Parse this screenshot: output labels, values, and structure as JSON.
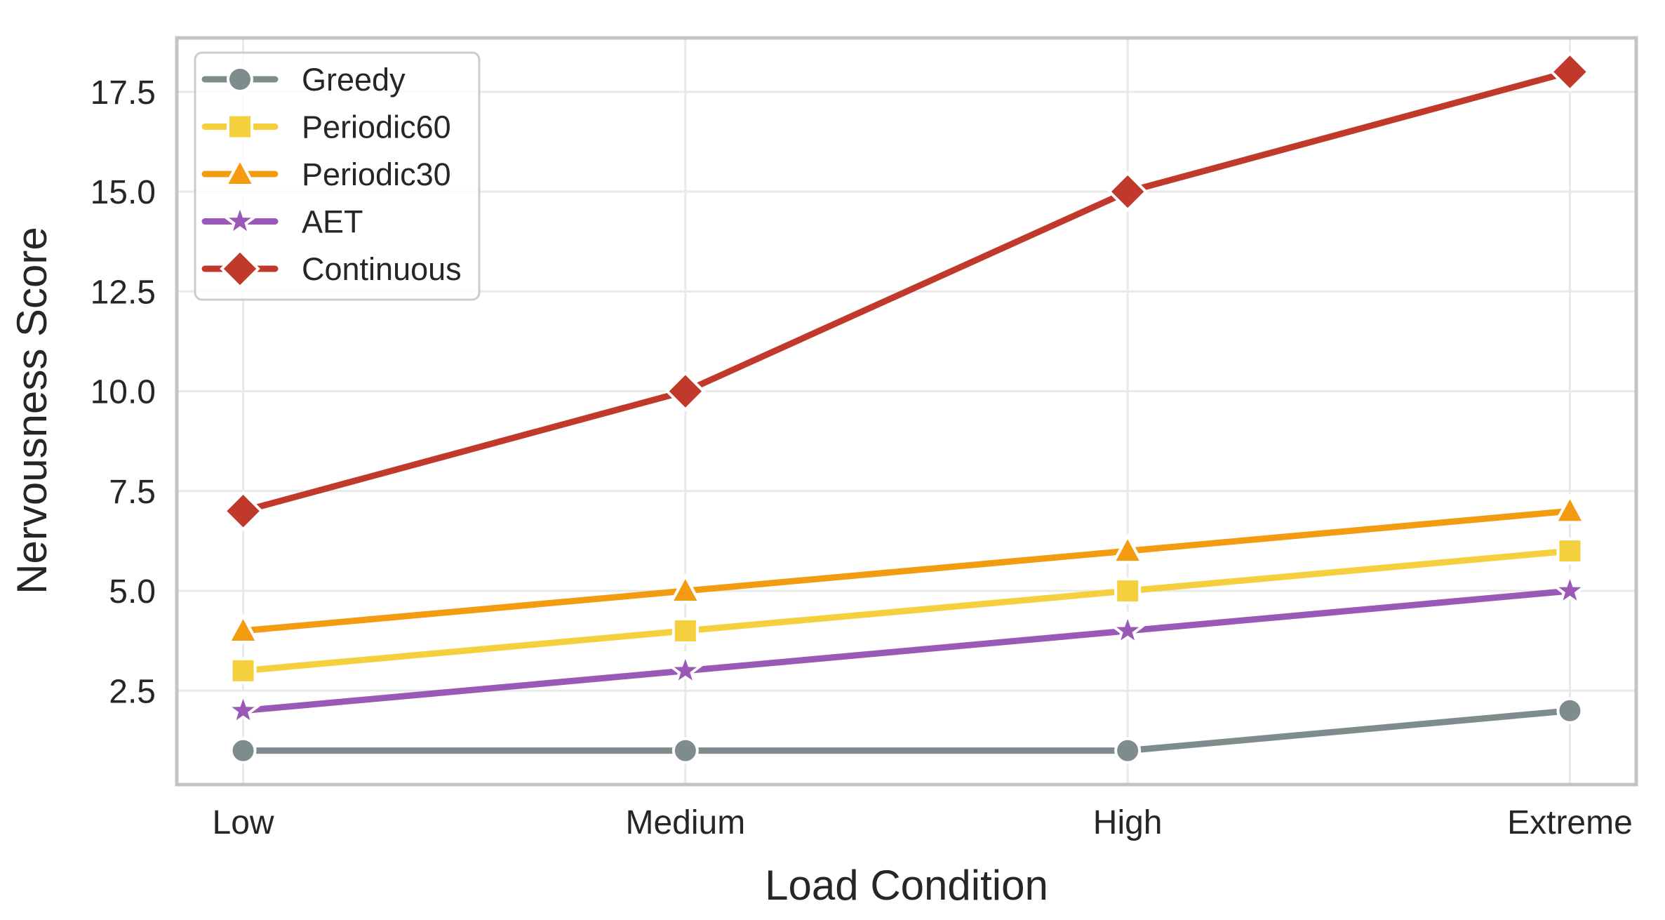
{
  "chart_data": {
    "type": "line",
    "title": "",
    "xlabel": "Load Condition",
    "ylabel": "Nervousness Score",
    "categories": [
      "Low",
      "Medium",
      "High",
      "Extreme"
    ],
    "series": [
      {
        "name": "Greedy",
        "color": "#7f8c8d",
        "marker": "circle",
        "values": [
          1,
          1,
          1,
          2
        ]
      },
      {
        "name": "Periodic60",
        "color": "#f4d03f",
        "marker": "square",
        "values": [
          3,
          4,
          5,
          6
        ]
      },
      {
        "name": "Periodic30",
        "color": "#f39c12",
        "marker": "triangle-up",
        "values": [
          4,
          5,
          6,
          7
        ]
      },
      {
        "name": "AET",
        "color": "#9b59b6",
        "marker": "star",
        "values": [
          2,
          3,
          4,
          5
        ]
      },
      {
        "name": "Continuous",
        "color": "#c0392b",
        "marker": "diamond",
        "values": [
          7,
          10,
          15,
          18
        ]
      }
    ],
    "yticks": [
      2.5,
      5.0,
      7.5,
      10.0,
      12.5,
      15.0,
      17.5
    ],
    "ytick_labels": [
      "2.5",
      "5.0",
      "7.5",
      "10.0",
      "12.5",
      "15.0",
      "17.5"
    ],
    "ylim": [
      0.15,
      18.85
    ],
    "grid": true,
    "legend_position": "upper left",
    "style": {
      "grid_color": "#e9e9e9",
      "spine_color": "#c4c4c4",
      "text_color": "#262626",
      "marker_edge_color": "#ffffff",
      "legend_border_color": "#cccccc",
      "legend_background": "#ffffff",
      "plot_background": "#ffffff"
    }
  }
}
